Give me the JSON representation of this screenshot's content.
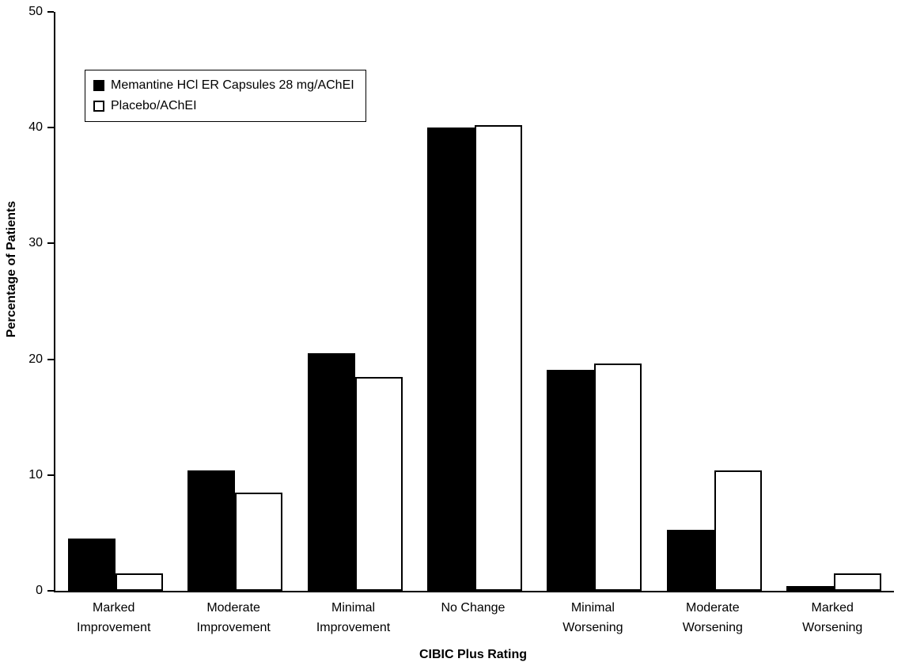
{
  "chart_data": {
    "type": "bar",
    "title": "",
    "xlabel": "CIBIC Plus Rating",
    "ylabel": "Percentage of Patients",
    "ylim": [
      0,
      50
    ],
    "yticks": [
      0,
      10,
      20,
      30,
      40,
      50
    ],
    "grid": false,
    "legend_position": "top-left",
    "categories": [
      "Marked Improvement",
      "Moderate Improvement",
      "Minimal Improvement",
      "No Change",
      "Minimal Worsening",
      "Moderate Worsening",
      "Marked Worsening"
    ],
    "series": [
      {
        "name": "Memantine HCl ER Capsules 28 mg/AChEI",
        "fill": "#000000",
        "values": [
          4.5,
          10.4,
          20.5,
          40.0,
          19.1,
          5.3,
          0.4
        ]
      },
      {
        "name": "Placebo/AChEI",
        "fill": "#ffffff",
        "values": [
          1.5,
          8.5,
          18.5,
          40.2,
          19.6,
          10.4,
          1.5
        ]
      }
    ]
  },
  "colors": {
    "axis": "#000000",
    "background": "#ffffff",
    "bar_memantine": "#000000",
    "bar_placebo": "#ffffff"
  }
}
